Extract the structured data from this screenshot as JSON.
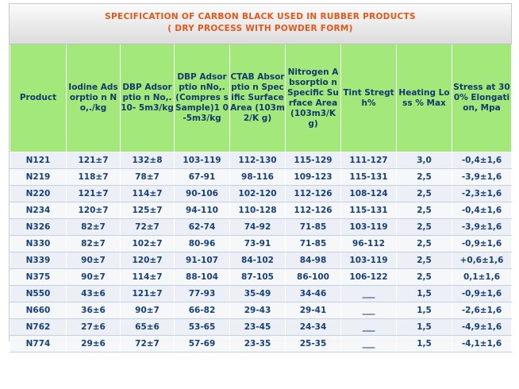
{
  "title": {
    "line1": "SPECIFICATION OF CARBON BLACK USED IN RUBBER PRODUCTS",
    "line2": "( DRY PROCESS WITH POWDER FORM)"
  },
  "columns": [
    "Product",
    "Iodine Adsorption No,./kg",
    "DBP Adsorption No,.10-5m3/kg",
    "DBP Adsorption No,.(Compress Sample)10-5m3/kg",
    "CTAB Absorption Specific Surface Area (103m2/Kg)",
    "Nitrogen Absorption Specific Surface Area (103m3/Kg)",
    "Tint Stregth%",
    "Heating Loss % Max",
    "Stress at 300% Elongation, Mpa"
  ],
  "header_display": [
    "Product",
    "Iodine Adsorptio n No,./kg",
    "DBP Adsorptio n No,.10- 5m3/kg",
    "DBP Adsorptio nNo,.(Compres s Sample)1 0-5m3/kg",
    "CTAB Absorptio n Specific Surface Area (103m2/K g)",
    "Nitrogen Absorptio n Specific Surface Area (103m3/K g)",
    "Tint Stregth%",
    "Heating Loss % Max",
    "Stress at 300% Elongation, Mpa"
  ],
  "rows": [
    [
      "N121",
      "121±7",
      "132±8",
      "103-119",
      "112-130",
      "115-129",
      "111-127",
      "3,0",
      "-0,4±1,6"
    ],
    [
      "N219",
      "118±7",
      "78±7",
      "67-91",
      "98-116",
      "109-123",
      "115-131",
      "2,5",
      "-3,9±1,6"
    ],
    [
      "N220",
      "121±7",
      "114±7",
      "90-106",
      "102-120",
      "112-126",
      "108-124",
      "2,5",
      "-2,3±1,6"
    ],
    [
      "N234",
      "120±7",
      "125±7",
      "94-110",
      "110-128",
      "112-126",
      "115-131",
      "2,5",
      "-0,4±1,6"
    ],
    [
      "N326",
      "82±7",
      "72±7",
      "62-74",
      "74-92",
      "71-85",
      "103-119",
      "2,5",
      "-3,9±1,6"
    ],
    [
      "N330",
      "82±7",
      "102±7",
      "80-96",
      "73-91",
      "71-85",
      "96-112",
      "2,5",
      "-0,9±1,6"
    ],
    [
      "N339",
      "90±7",
      "120±7",
      "91-107",
      "84-102",
      "84-98",
      "103-119",
      "2,5",
      "+0,6±1,6"
    ],
    [
      "N375",
      "90±7",
      "114±7",
      "88-104",
      "87-105",
      "86-100",
      "106-122",
      "2,5",
      "0,1±1,6"
    ],
    [
      "N550",
      "43±6",
      "121±7",
      "77-93",
      "35-49",
      "34-46",
      "___",
      "1,5",
      "-0,9±1,6"
    ],
    [
      "N660",
      "36±6",
      "90±7",
      "66-82",
      "29-43",
      "29-41",
      "___",
      "1,5",
      "-2,6±1,6"
    ],
    [
      "N762",
      "27±6",
      "65±6",
      "53-65",
      "23-45",
      "24-34",
      "___",
      "1,5",
      "-4,9±1,6"
    ],
    [
      "N774",
      "29±6",
      "72±7",
      "57-69",
      "23-35",
      "25-35",
      "___",
      "1,5",
      "-4,1±1,6"
    ]
  ],
  "colors": {
    "title": "#e2571a",
    "header_bg": "#a3e87a",
    "header_text": "#15386e",
    "cell_text": "#16407a"
  }
}
